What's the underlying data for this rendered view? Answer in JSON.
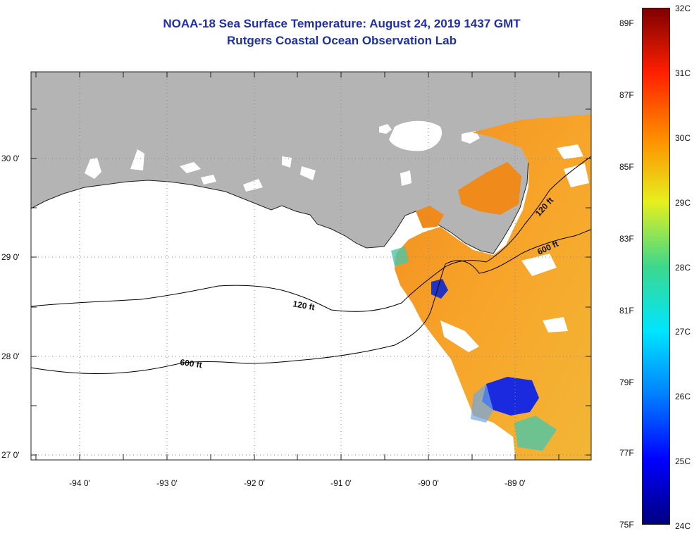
{
  "title": {
    "line1": "NOAA-18 Sea Surface Temperature:  August 24, 2019 1437 GMT",
    "line2": "Rutgers Coastal Ocean Observation Lab"
  },
  "axes": {
    "lon_labels": [
      "-94 0'",
      "-93 0'",
      "-92 0'",
      "-91 0'",
      "-90 0'",
      "-89 0'"
    ],
    "lat_labels": [
      "30 0'",
      "29 0'",
      "28 0'",
      "27 0'"
    ]
  },
  "contours": {
    "shallow": "120 ft",
    "deep": "600 ft"
  },
  "colorbar": {
    "fahrenheit": [
      "89F",
      "87F",
      "85F",
      "83F",
      "81F",
      "79F",
      "77F",
      "75F"
    ],
    "celsius": [
      "32C",
      "31C",
      "30C",
      "29C",
      "28C",
      "27C",
      "26C",
      "25C",
      "24C"
    ],
    "colors": {
      "c24": "#00007f",
      "c25": "#0000ff",
      "c26": "#007fff",
      "c27": "#00e5ff",
      "c28": "#3cd88c",
      "c29": "#e6f01e",
      "c30": "#ff8c00",
      "c31": "#ff2000",
      "c32": "#7f0000"
    }
  },
  "colors": {
    "land": "#b4b4b4",
    "title": "#1f2fa8",
    "sst_main": "#f5a623",
    "sst_warm": "#f08a1a",
    "sst_cold": "#1a2adf"
  }
}
